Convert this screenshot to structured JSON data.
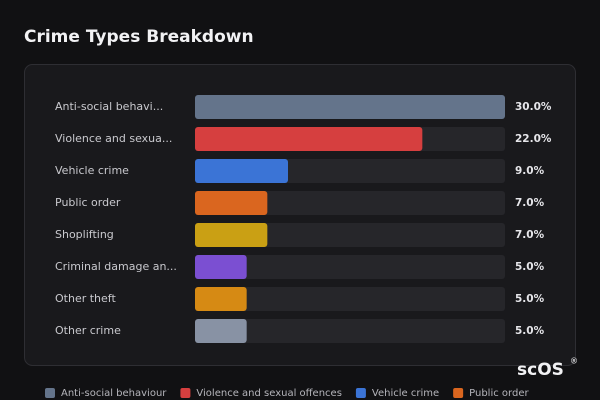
{
  "chart_data": {
    "type": "bar",
    "orientation": "horizontal",
    "title": "Crime Types Breakdown",
    "categories": [
      "Anti-social behavi...",
      "Violence and sexua...",
      "Vehicle crime",
      "Public order",
      "Shoplifting",
      "Criminal damage an...",
      "Other theft",
      "Other crime"
    ],
    "values": [
      30,
      22,
      9,
      7,
      7,
      5,
      5,
      5
    ],
    "value_labels": [
      "30.0%",
      "22.0%",
      "9.0%",
      "7.0%",
      "7.0%",
      "5.0%",
      "5.0%",
      "5.0%"
    ],
    "colors": [
      "#64748b",
      "#d63f3f",
      "#3b74d6",
      "#da661f",
      "#caa014",
      "#7b4fd2",
      "#d68a14",
      "#8892a4"
    ],
    "xlim": [
      0,
      30
    ],
    "legend": [
      {
        "name": "Anti-social behaviour",
        "color": "#64748b"
      },
      {
        "name": "Violence and sexual offences",
        "color": "#d63f3f"
      },
      {
        "name": "Vehicle crime",
        "color": "#3b74d6"
      },
      {
        "name": "Public order",
        "color": "#da661f"
      }
    ],
    "brand": "scOS",
    "brand_mark": "®"
  }
}
